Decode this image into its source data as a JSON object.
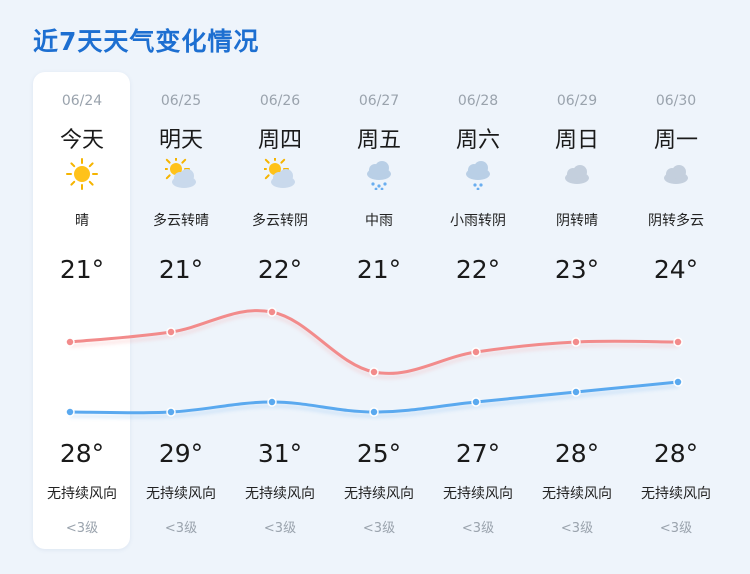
{
  "title": "近7天天气变化情况",
  "days": [
    {
      "date": "06/24",
      "day": "今天",
      "weather": "晴",
      "icon": "sunny-icon",
      "temp_top": "21°",
      "temp_bottom": "28°",
      "wind": "无持续风向",
      "level": "<3级"
    },
    {
      "date": "06/25",
      "day": "明天",
      "weather": "多云转晴",
      "icon": "partly-cloudy-icon",
      "temp_top": "21°",
      "temp_bottom": "29°",
      "wind": "无持续风向",
      "level": "<3级"
    },
    {
      "date": "06/26",
      "day": "周四",
      "weather": "多云转阴",
      "icon": "partly-cloudy-icon",
      "temp_top": "22°",
      "temp_bottom": "31°",
      "wind": "无持续风向",
      "level": "<3级"
    },
    {
      "date": "06/27",
      "day": "周五",
      "weather": "中雨",
      "icon": "rain-icon",
      "temp_top": "21°",
      "temp_bottom": "25°",
      "wind": "无持续风向",
      "level": "<3级"
    },
    {
      "date": "06/28",
      "day": "周六",
      "weather": "小雨转阴",
      "icon": "light-rain-icon",
      "temp_top": "22°",
      "temp_bottom": "27°",
      "wind": "无持续风向",
      "level": "<3级"
    },
    {
      "date": "06/29",
      "day": "周日",
      "weather": "阴转晴",
      "icon": "cloudy-icon",
      "temp_top": "23°",
      "temp_bottom": "28°",
      "wind": "无持续风向",
      "level": "<3级"
    },
    {
      "date": "06/30",
      "day": "周一",
      "weather": "阴转多云",
      "icon": "cloudy-icon",
      "temp_top": "24°",
      "temp_bottom": "28°",
      "wind": "无持续风向",
      "level": "<3级"
    }
  ],
  "chart_data": {
    "type": "line",
    "categories": [
      "06/24",
      "06/25",
      "06/26",
      "06/27",
      "06/28",
      "06/29",
      "06/30"
    ],
    "series": [
      {
        "values": [
          28,
          29,
          31,
          25,
          27,
          28,
          28
        ],
        "color": "#f28b8b"
      },
      {
        "values": [
          21,
          21,
          22,
          21,
          22,
          23,
          24
        ],
        "color": "#5aa9ef"
      }
    ]
  }
}
